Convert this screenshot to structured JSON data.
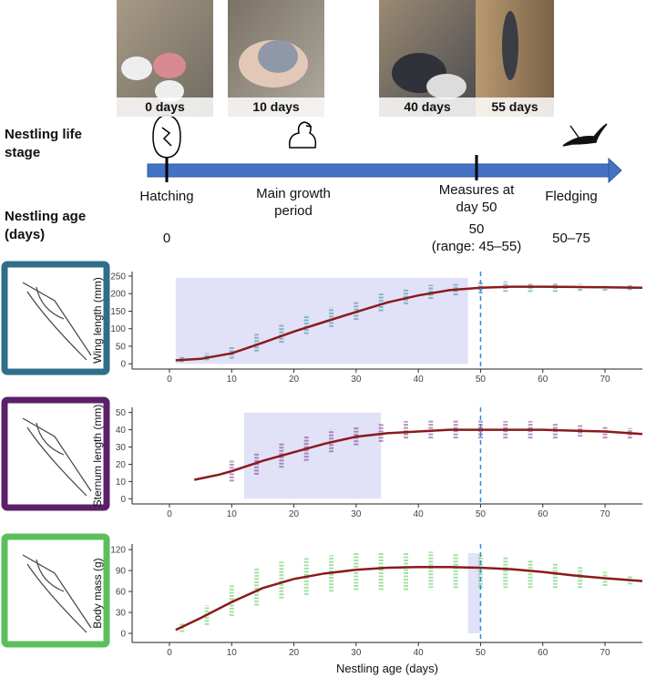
{
  "timeline": {
    "stage_label": "Nestling life stage",
    "age_label": "Nestling age (days)",
    "photos": [
      "0 days",
      "10 days",
      "40 days",
      "55 days"
    ],
    "events": [
      {
        "label": "Hatching",
        "age": "0"
      },
      {
        "label": "Main growth period"
      },
      {
        "label": "Measures at day 50",
        "age": "50",
        "age_note": "(range: 45–55)"
      },
      {
        "label": "Fledging",
        "age": "50–75"
      }
    ]
  },
  "chart_data": [
    {
      "type": "scatter-band",
      "ylabel": "Wing length (mm)",
      "xlim": [
        -6,
        76
      ],
      "ylim": [
        -15,
        263
      ],
      "xticks": [
        0,
        10,
        20,
        30,
        40,
        50,
        60,
        70
      ],
      "yticks": [
        0,
        50,
        100,
        150,
        200,
        250
      ],
      "frame_color": "#2e6e8a",
      "shade": {
        "x": [
          1,
          48
        ],
        "y": [
          0,
          245
        ],
        "color": "#dcdcf7"
      },
      "vline": 50,
      "spread": {
        "color": "#3a8fa0",
        "x": [
          2,
          6,
          10,
          14,
          18,
          22,
          26,
          30,
          34,
          38,
          42,
          46,
          50,
          54,
          58,
          62,
          66,
          70,
          74
        ],
        "low": [
          5,
          10,
          15,
          35,
          60,
          85,
          105,
          125,
          150,
          170,
          185,
          195,
          200,
          205,
          205,
          205,
          208,
          208,
          210
        ],
        "high": [
          20,
          30,
          50,
          85,
          115,
          140,
          160,
          180,
          200,
          215,
          225,
          230,
          235,
          235,
          232,
          230,
          228,
          225,
          224
        ]
      },
      "curve": {
        "color": "#8b1a1a",
        "x": [
          1,
          5,
          10,
          15,
          20,
          25,
          30,
          35,
          40,
          45,
          50,
          55,
          60,
          65,
          70,
          76
        ],
        "values": [
          10,
          14,
          30,
          60,
          92,
          120,
          148,
          175,
          195,
          210,
          217,
          220,
          220,
          219,
          218,
          217
        ]
      }
    },
    {
      "type": "scatter-band",
      "ylabel": "Sternum length (mm)",
      "xlim": [
        -6,
        76
      ],
      "ylim": [
        -3,
        53
      ],
      "xticks": [
        0,
        10,
        20,
        30,
        40,
        50,
        60,
        70
      ],
      "yticks": [
        0,
        10,
        20,
        30,
        40,
        50
      ],
      "frame_color": "#5b2068",
      "shade": {
        "x": [
          12,
          34
        ],
        "y": [
          0,
          50
        ],
        "color": "#dcdcf7"
      },
      "vline": 50,
      "spread": {
        "color": "#7a3a8a",
        "x": [
          10,
          14,
          18,
          22,
          26,
          30,
          34,
          38,
          42,
          46,
          50,
          54,
          58,
          62,
          66,
          70,
          74
        ],
        "low": [
          10,
          14,
          18,
          22,
          27,
          31,
          33,
          35,
          35,
          35,
          35,
          35,
          35,
          35,
          36,
          35,
          35
        ],
        "high": [
          22,
          27,
          32,
          36,
          40,
          42,
          44,
          45,
          46,
          46,
          46,
          45,
          45,
          44,
          43,
          42,
          41
        ]
      },
      "curve": {
        "color": "#8b1a1a",
        "x": [
          4,
          8,
          10,
          15,
          20,
          25,
          30,
          35,
          40,
          45,
          50,
          55,
          60,
          65,
          70,
          76
        ],
        "values": [
          11,
          14,
          16,
          22,
          27,
          32,
          36,
          38,
          39,
          40,
          40,
          40,
          40,
          39.5,
          39,
          37.5
        ]
      }
    },
    {
      "type": "scatter-band",
      "ylabel": "Body mass (g)",
      "xlabel": "Nestling age (days)",
      "xlim": [
        -6,
        76
      ],
      "ylim": [
        -13,
        128
      ],
      "xticks": [
        0,
        10,
        20,
        30,
        40,
        50,
        60,
        70
      ],
      "yticks": [
        0,
        30,
        60,
        90,
        120
      ],
      "frame_color": "#5cbf5c",
      "shade": {
        "x": [
          48,
          50
        ],
        "y": [
          0,
          115
        ],
        "color": "#dcdcf7"
      },
      "vline": 50,
      "spread": {
        "color": "#5ac85a",
        "x": [
          2,
          6,
          10,
          14,
          18,
          22,
          26,
          30,
          34,
          38,
          42,
          46,
          50,
          54,
          58,
          62,
          66,
          70,
          74
        ],
        "low": [
          2,
          12,
          25,
          40,
          50,
          55,
          60,
          62,
          62,
          62,
          65,
          65,
          65,
          65,
          65,
          65,
          65,
          68,
          70
        ],
        "high": [
          15,
          40,
          70,
          95,
          105,
          110,
          112,
          115,
          115,
          117,
          117,
          115,
          112,
          110,
          105,
          100,
          95,
          88,
          82
        ]
      },
      "curve": {
        "color": "#8b1a1a",
        "x": [
          1,
          5,
          10,
          15,
          20,
          25,
          30,
          35,
          40,
          45,
          50,
          55,
          60,
          65,
          70,
          76
        ],
        "values": [
          5,
          22,
          45,
          65,
          78,
          86,
          91,
          94,
          95,
          95,
          94,
          92,
          88,
          83,
          79,
          75
        ]
      }
    }
  ]
}
